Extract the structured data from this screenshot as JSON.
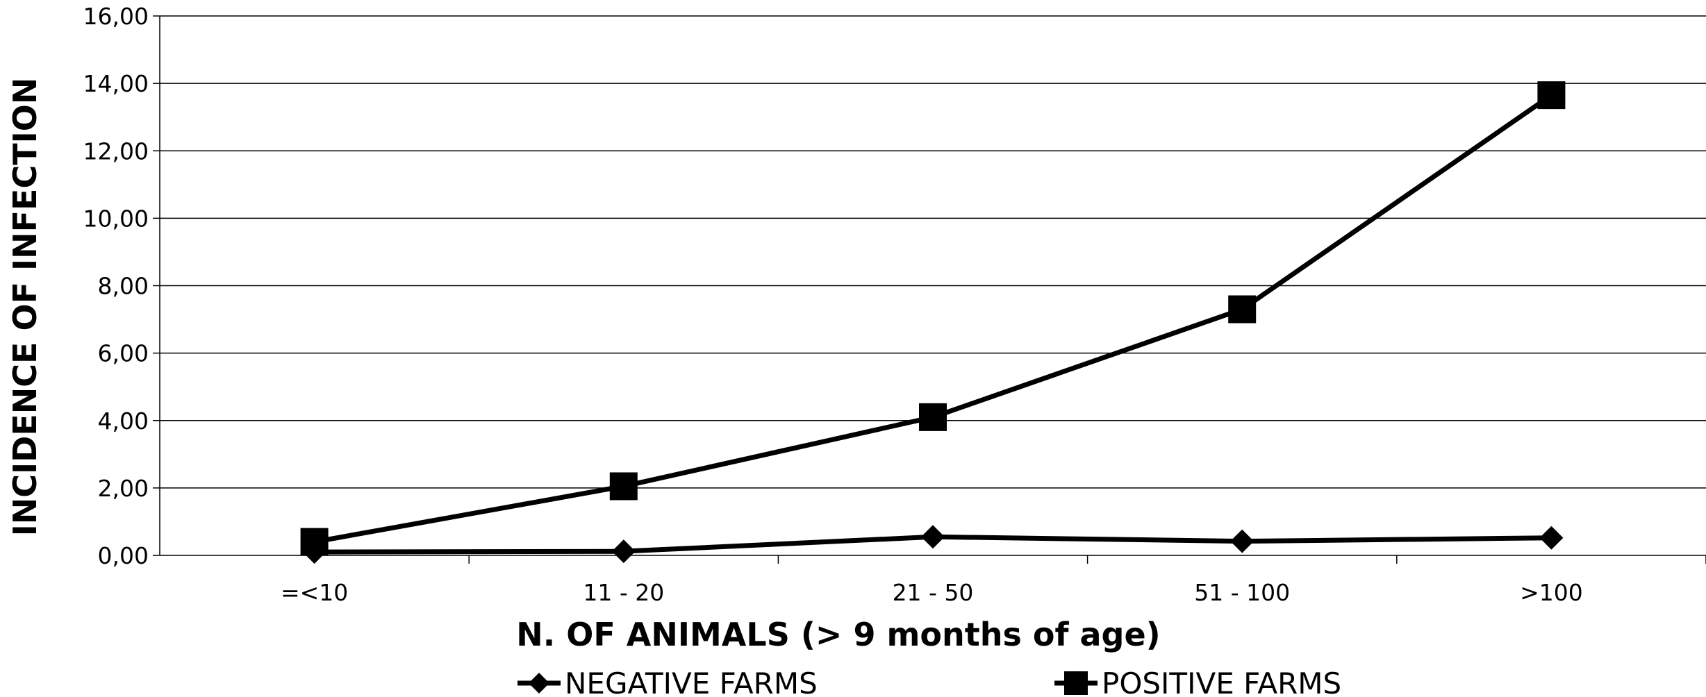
{
  "chart_data": {
    "type": "line",
    "title": "",
    "xlabel": "N. OF ANIMALS (> 9 months of age)",
    "ylabel": "INCIDENCE OF INFECTION",
    "categories": [
      "=<10",
      "11 - 20",
      "21 - 50",
      "51 - 100",
      ">100"
    ],
    "ylim": [
      0,
      16
    ],
    "yticks": [
      "0,00",
      "2,00",
      "4,00",
      "6,00",
      "8,00",
      "10,00",
      "12,00",
      "14,00",
      "16,00"
    ],
    "ytick_values": [
      0,
      2,
      4,
      6,
      8,
      10,
      12,
      14,
      16
    ],
    "grid": true,
    "legend_position": "bottom",
    "series": [
      {
        "name": "NEGATIVE FARMS",
        "marker": "diamond",
        "color": "#000000",
        "values": [
          0.1,
          0.12,
          0.55,
          0.42,
          0.52
        ]
      },
      {
        "name": "POSITIVE FARMS",
        "marker": "square",
        "color": "#000000",
        "values": [
          0.4,
          2.05,
          4.1,
          7.3,
          13.65
        ]
      }
    ]
  }
}
